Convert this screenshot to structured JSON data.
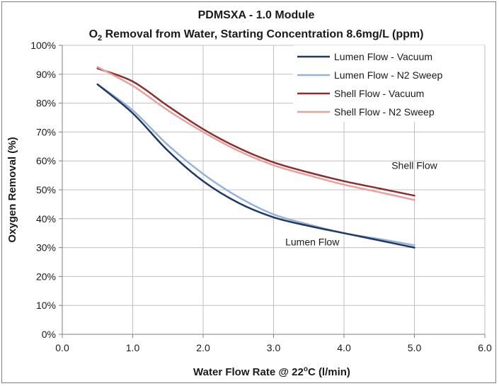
{
  "chart_data": {
    "type": "line",
    "title_line1": "PDMSXA - 1.0 Module",
    "title_line2_pre": "O",
    "title_line2_sub": "2",
    "title_line2_post": " Removal from Water, Starting Concentration 8.6mg/L (ppm)",
    "xlabel_pre": "Water Flow Rate @ 22",
    "xlabel_sup": "o",
    "xlabel_post": "C (l/min)",
    "ylabel": "Oxygen Removal (%)",
    "xlim": [
      0,
      6
    ],
    "ylim": [
      0,
      100
    ],
    "x_ticks": [
      "0.0",
      "1.0",
      "2.0",
      "3.0",
      "4.0",
      "5.0",
      "6.0"
    ],
    "y_ticks": [
      "0%",
      "10%",
      "20%",
      "30%",
      "40%",
      "50%",
      "60%",
      "70%",
      "80%",
      "90%",
      "100%"
    ],
    "grid": "vertical and horizontal major gridlines",
    "legend_position": "top-right",
    "series": [
      {
        "name": "Lumen Flow - Vacuum",
        "color": "#1f3864",
        "points": [
          [
            0.5,
            86.5
          ],
          [
            1.0,
            76.5
          ],
          [
            1.5,
            63.5
          ],
          [
            2.0,
            53
          ],
          [
            2.5,
            45.5
          ],
          [
            3.0,
            40.5
          ],
          [
            3.5,
            37.5
          ],
          [
            4.0,
            35
          ],
          [
            4.5,
            32.5
          ],
          [
            5.0,
            30
          ]
        ]
      },
      {
        "name": "Lumen Flow - N2 Sweep",
        "color": "#95b3d7",
        "points": [
          [
            0.5,
            86.5
          ],
          [
            1.0,
            77.5
          ],
          [
            1.5,
            65.5
          ],
          [
            2.0,
            55.5
          ],
          [
            2.5,
            47.5
          ],
          [
            3.0,
            41.5
          ],
          [
            3.5,
            38
          ],
          [
            4.0,
            35
          ],
          [
            4.5,
            33
          ],
          [
            5.0,
            30.8
          ]
        ]
      },
      {
        "name": "Shell Flow - Vacuum",
        "color": "#8b2e2e",
        "points": [
          [
            0.5,
            92
          ],
          [
            1.0,
            87.5
          ],
          [
            1.5,
            79
          ],
          [
            2.0,
            71
          ],
          [
            2.5,
            64.5
          ],
          [
            3.0,
            59.5
          ],
          [
            3.5,
            56
          ],
          [
            4.0,
            53
          ],
          [
            4.5,
            50.5
          ],
          [
            5.0,
            48
          ]
        ]
      },
      {
        "name": "Shell Flow - N2 Sweep",
        "color": "#e6a0a0",
        "points": [
          [
            0.5,
            92.5
          ],
          [
            1.0,
            86
          ],
          [
            1.5,
            77.5
          ],
          [
            2.0,
            70
          ],
          [
            2.5,
            63.5
          ],
          [
            3.0,
            58.5
          ],
          [
            3.5,
            55
          ],
          [
            4.0,
            51.8
          ],
          [
            4.5,
            49.2
          ],
          [
            5.0,
            46.5
          ]
        ]
      }
    ],
    "annotations": {
      "shell": {
        "text": "Shell Flow",
        "x": 5.0,
        "y": 58.5
      },
      "lumen": {
        "text": "Lumen Flow",
        "x": 3.55,
        "y": 32
      }
    }
  }
}
